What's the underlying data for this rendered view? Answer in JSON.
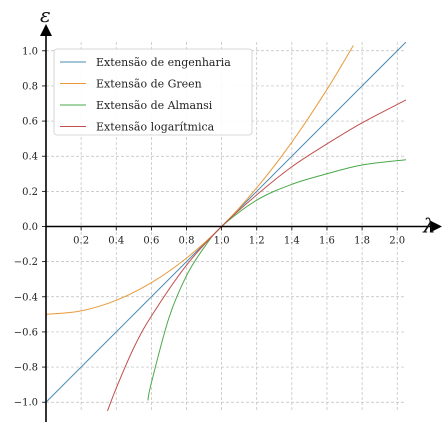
{
  "chart_data": {
    "type": "line",
    "title": "",
    "xlabel": "λ",
    "ylabel": "ε",
    "xlim": [
      0,
      2.05
    ],
    "ylim": [
      -1.05,
      1.05
    ],
    "xticks": [
      0.2,
      0.4,
      0.6,
      0.8,
      1.0,
      1.2,
      1.4,
      1.6,
      1.8,
      2.0
    ],
    "xtick_labels": [
      "0.2",
      "0.4",
      "0.6",
      "0.8",
      "1.0",
      "1.2",
      "1.4",
      "1.6",
      "1.8",
      "2.0"
    ],
    "yticks": [
      -1.0,
      -0.8,
      -0.6,
      -0.4,
      -0.2,
      0.0,
      0.2,
      0.4,
      0.6,
      0.8,
      1.0
    ],
    "ytick_labels": [
      "−1.0",
      "−0.8",
      "−0.6",
      "−0.4",
      "−0.2",
      "0.0",
      "0.2",
      "0.4",
      "0.6",
      "0.8",
      "1.0"
    ],
    "grid": true,
    "legend_position": "top-left",
    "series": [
      {
        "name": "Extensão de engenharia",
        "color": "#4a8ab4",
        "x": [
          0.0,
          0.5,
          1.0,
          1.5,
          2.05
        ],
        "y": [
          -1.0,
          -0.5,
          0.0,
          0.5,
          1.05
        ]
      },
      {
        "name": "Extensão de Green",
        "color": "#e89a3c",
        "x": [
          0.0,
          0.2,
          0.4,
          0.6,
          0.8,
          1.0,
          1.2,
          1.4,
          1.6,
          1.75
        ],
        "y": [
          -0.5,
          -0.48,
          -0.42,
          -0.32,
          -0.18,
          0.0,
          0.22,
          0.48,
          0.78,
          1.03
        ]
      },
      {
        "name": "Extensão de Almansi",
        "color": "#4aa84a",
        "x": [
          0.58,
          0.6,
          0.7,
          0.8,
          0.9,
          1.0,
          1.2,
          1.4,
          1.6,
          1.8,
          2.05
        ],
        "y": [
          -0.99,
          -0.89,
          -0.52,
          -0.28,
          -0.12,
          0.0,
          0.15,
          0.24,
          0.3,
          0.35,
          0.38
        ]
      },
      {
        "name": "Extensão logarítmica",
        "color": "#c0504d",
        "x": [
          0.35,
          0.4,
          0.5,
          0.6,
          0.8,
          1.0,
          1.2,
          1.4,
          1.6,
          1.8,
          2.05
        ],
        "y": [
          -1.05,
          -0.92,
          -0.69,
          -0.51,
          -0.22,
          0.0,
          0.18,
          0.34,
          0.47,
          0.59,
          0.72
        ]
      }
    ]
  }
}
